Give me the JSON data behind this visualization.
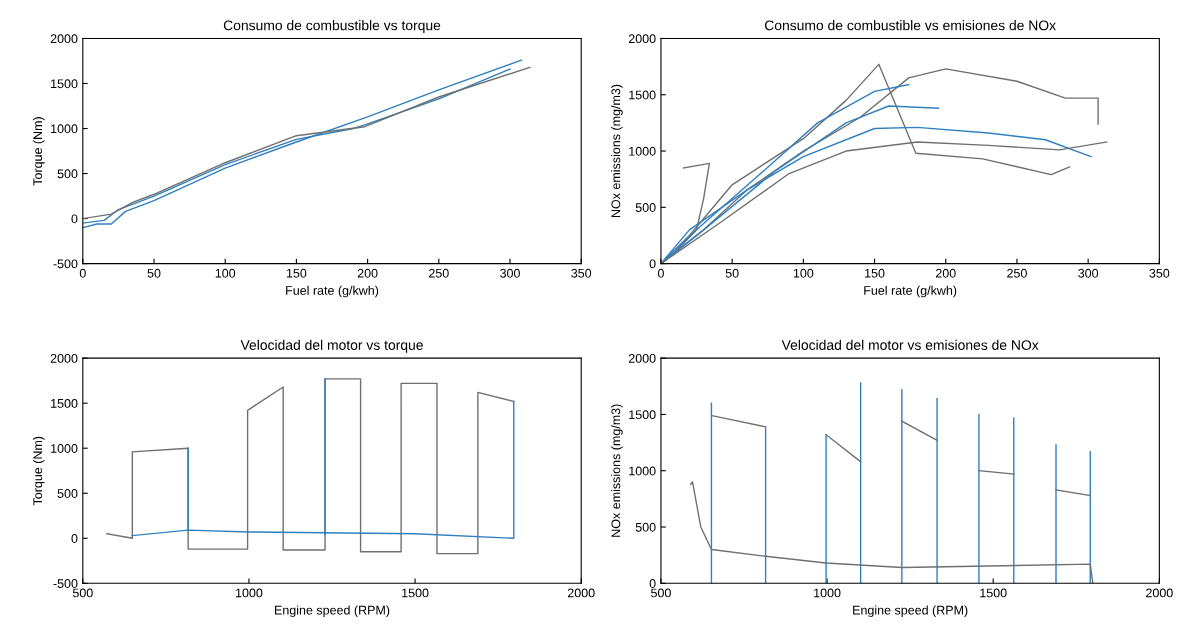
{
  "chart_data": [
    {
      "type": "line",
      "title": "Consumo de combustible vs torque",
      "xlabel": "Fuel rate (g/kwh)",
      "ylabel": "Torque (Nm)",
      "xlim": [
        0,
        350
      ],
      "ylim": [
        -500,
        2000
      ],
      "xticks": [
        0,
        50,
        100,
        150,
        200,
        250,
        300,
        350
      ],
      "yticks": [
        -500,
        0,
        500,
        1000,
        1500,
        2000
      ],
      "grid": false,
      "series": [
        {
          "color": "#2f7fc1",
          "x": [
            0,
            10,
            20,
            30,
            50,
            100,
            150,
            200,
            250,
            308
          ],
          "values": [
            -100,
            -60,
            -60,
            80,
            200,
            560,
            850,
            1130,
            1430,
            1760
          ]
        },
        {
          "color": "#2f7fc1",
          "x": [
            0,
            15,
            25,
            50,
            100,
            150,
            190,
            198,
            250,
            300
          ],
          "values": [
            -50,
            -20,
            100,
            250,
            600,
            880,
            1000,
            1040,
            1330,
            1660
          ]
        },
        {
          "color": "#6e7070",
          "x": [
            0,
            20,
            35,
            50,
            100,
            150,
            198,
            250,
            314
          ],
          "values": [
            0,
            50,
            180,
            270,
            620,
            920,
            1020,
            1350,
            1680
          ]
        }
      ]
    },
    {
      "type": "line",
      "title": "Consumo de combustible vs emisiones de NOx",
      "xlabel": "Fuel rate (g/kwh)",
      "ylabel": "NOx emissions (mg/m3)",
      "xlim": [
        0,
        350
      ],
      "ylim": [
        0,
        2000
      ],
      "xticks": [
        0,
        50,
        100,
        150,
        200,
        250,
        300,
        350
      ],
      "yticks": [
        0,
        500,
        1000,
        1500,
        2000
      ],
      "grid": false,
      "series": [
        {
          "color": "#6e7070",
          "x": [
            16,
            34,
            30,
            25,
            10,
            0
          ],
          "values": [
            850,
            890,
            580,
            300,
            100,
            0
          ]
        },
        {
          "color": "#6e7070",
          "x": [
            0,
            20,
            50,
            100,
            130,
            153,
            179,
            226,
            274,
            287
          ],
          "values": [
            0,
            250,
            700,
            1110,
            1450,
            1770,
            980,
            930,
            790,
            860
          ]
        },
        {
          "color": "#6e7070",
          "x": [
            0,
            30,
            60,
            100,
            140,
            174,
            200,
            250,
            284,
            307,
            307
          ],
          "values": [
            0,
            300,
            650,
            1000,
            1300,
            1650,
            1730,
            1620,
            1470,
            1470,
            1240
          ]
        },
        {
          "color": "#2f7fc1",
          "x": [
            0,
            20,
            60,
            100,
            150,
            180,
            230,
            270,
            302
          ],
          "values": [
            0,
            300,
            650,
            950,
            1200,
            1210,
            1160,
            1100,
            950
          ]
        },
        {
          "color": "#2f7fc1",
          "x": [
            0,
            25,
            70,
            110,
            150,
            174
          ],
          "values": [
            0,
            300,
            800,
            1250,
            1530,
            1590
          ]
        },
        {
          "color": "#2f7fc1",
          "x": [
            0,
            30,
            80,
            130,
            160,
            195
          ],
          "values": [
            0,
            300,
            820,
            1250,
            1400,
            1380
          ]
        },
        {
          "color": "#6e7070",
          "x": [
            0,
            40,
            90,
            130,
            180,
            230,
            280,
            313
          ],
          "values": [
            0,
            350,
            800,
            1000,
            1080,
            1050,
            1010,
            1080
          ]
        }
      ]
    },
    {
      "type": "line",
      "title": "Velocidad del motor vs torque",
      "xlabel": "Engine speed (RPM)",
      "ylabel": "Torque (Nm)",
      "xlim": [
        500,
        2000
      ],
      "ylim": [
        -500,
        2000
      ],
      "xticks": [
        500,
        1000,
        1500,
        2000
      ],
      "yticks": [
        -500,
        0,
        500,
        1000,
        1500,
        2000
      ],
      "grid": false,
      "series": [
        {
          "color": "#6e7070",
          "x": [
            572,
            649,
            649,
            817,
            817,
            996,
            996,
            1103,
            1103,
            1229,
            1229,
            1336,
            1336,
            1458,
            1458,
            1566,
            1566,
            1689,
            1689,
            1797
          ],
          "values": [
            50,
            0,
            960,
            1000,
            -120,
            -120,
            1420,
            1680,
            -130,
            -130,
            1770,
            1770,
            -150,
            -150,
            1720,
            1720,
            -170,
            -170,
            1620,
            1520
          ]
        },
        {
          "color": "#2f7fc1",
          "x": [
            649,
            817,
            1000,
            1500,
            1797,
            1797
          ],
          "values": [
            30,
            90,
            70,
            50,
            0,
            1520
          ]
        },
        {
          "color": "#2f7fc1",
          "x": [
            1229,
            1229
          ],
          "values": [
            40,
            1770
          ]
        },
        {
          "color": "#2f7fc1",
          "x": [
            817,
            817
          ],
          "values": [
            90,
            1000
          ]
        }
      ]
    },
    {
      "type": "line",
      "title": "Velocidad del motor vs emisiones de NOx",
      "xlabel": "Engine speed (RPM)",
      "ylabel": "NOx emissions (mg/m3)",
      "xlim": [
        500,
        2000
      ],
      "ylim": [
        0,
        2000
      ],
      "xticks": [
        500,
        1000,
        1500,
        2000
      ],
      "yticks": [
        0,
        500,
        1000,
        1500,
        2000
      ],
      "grid": false,
      "series": [
        {
          "color": "#2f7fc1",
          "x": [
            652,
            652,
            null,
            815,
            815,
            null,
            997,
            997,
            null,
            1101,
            1101,
            null,
            1225,
            1225,
            null,
            1331,
            1331,
            null,
            1457,
            1457,
            null,
            1562,
            1562,
            null,
            1689,
            1689,
            null,
            1792,
            1792
          ],
          "values": [
            0,
            1600,
            null,
            0,
            1380,
            null,
            0,
            1320,
            null,
            0,
            1780,
            null,
            0,
            1720,
            null,
            0,
            1640,
            null,
            0,
            1500,
            null,
            0,
            1470,
            null,
            0,
            1230,
            null,
            0,
            1170
          ]
        },
        {
          "color": "#6e7070",
          "x": [
            590,
            595,
            620,
            652,
            815,
            997,
            1225,
            1792,
            1800
          ],
          "values": [
            880,
            900,
            500,
            300,
            240,
            180,
            140,
            170,
            0
          ]
        },
        {
          "color": "#6e7070",
          "x": [
            815,
            652
          ],
          "values": [
            1390,
            1490
          ]
        },
        {
          "color": "#6e7070",
          "x": [
            997,
            1101
          ],
          "values": [
            1320,
            1080
          ]
        },
        {
          "color": "#6e7070",
          "x": [
            1225,
            1331
          ],
          "values": [
            1440,
            1270
          ]
        },
        {
          "color": "#6e7070",
          "x": [
            1457,
            1562
          ],
          "values": [
            1000,
            970
          ]
        },
        {
          "color": "#6e7070",
          "x": [
            1689,
            1792
          ],
          "values": [
            830,
            780
          ]
        }
      ]
    }
  ]
}
